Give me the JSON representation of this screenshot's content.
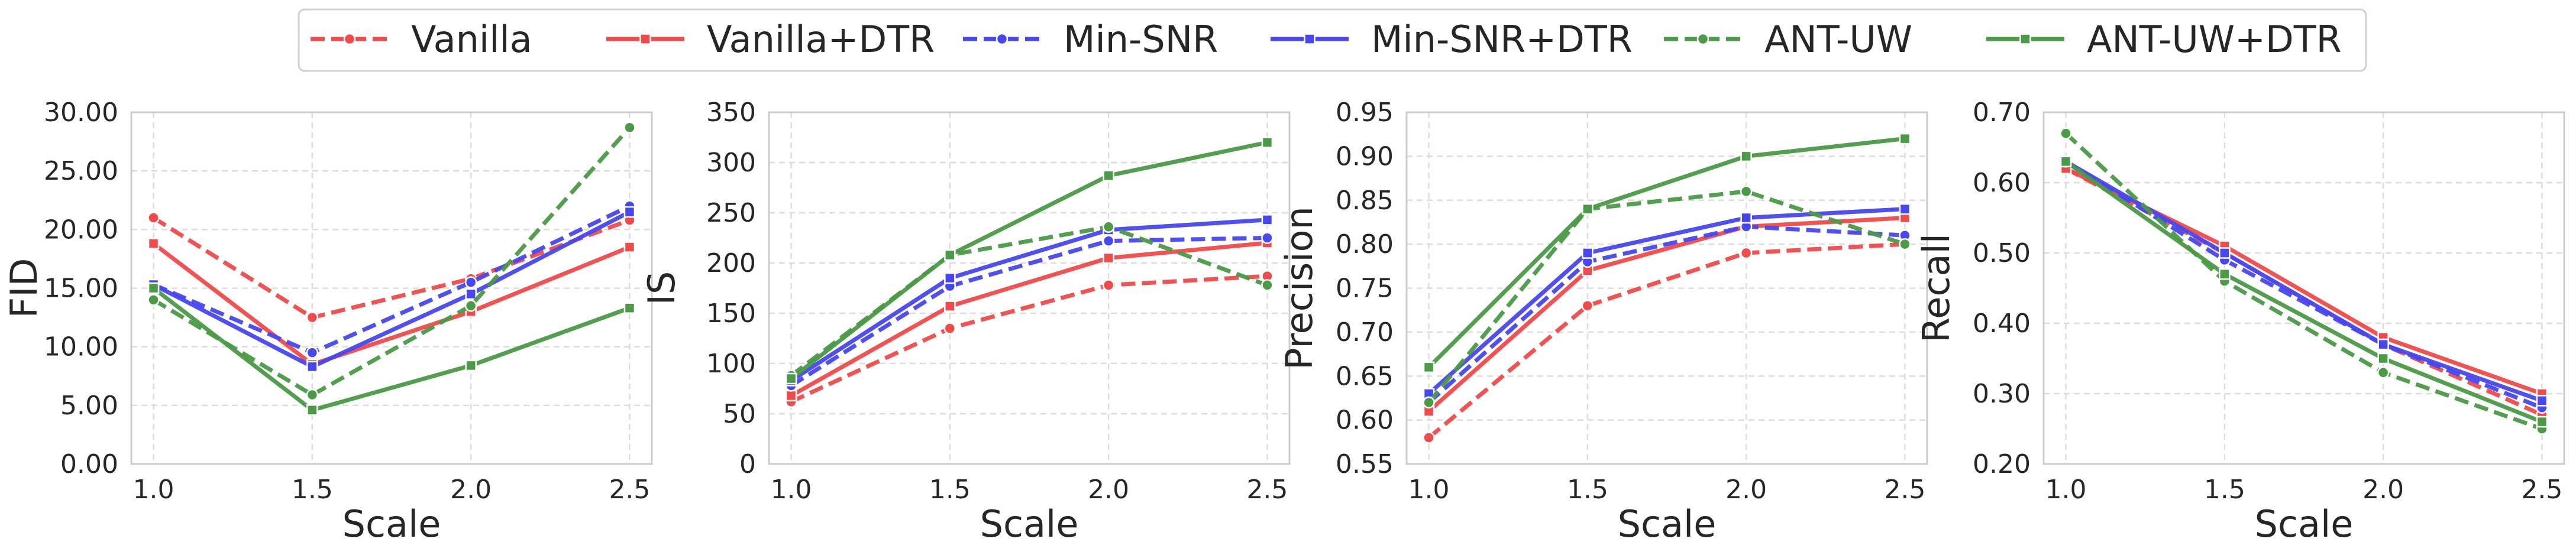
{
  "legend": {
    "position": "top-center",
    "entries": [
      "Vanilla",
      "Vanilla+DTR",
      "Min-SNR",
      "Min-SNR+DTR",
      "ANT-UW",
      "ANT-UW+DTR"
    ]
  },
  "series_style": {
    "Vanilla": {
      "color": "#f04a4a",
      "dashed": true,
      "marker": "circle"
    },
    "Vanilla+DTR": {
      "color": "#f04a4a",
      "dashed": false,
      "marker": "square"
    },
    "Min-SNR": {
      "color": "#4747f0",
      "dashed": true,
      "marker": "circle"
    },
    "Min-SNR+DTR": {
      "color": "#4747f0",
      "dashed": false,
      "marker": "square"
    },
    "ANT-UW": {
      "color": "#4a9a46",
      "dashed": true,
      "marker": "circle"
    },
    "ANT-UW+DTR": {
      "color": "#4a9a46",
      "dashed": false,
      "marker": "square"
    }
  },
  "chart_data": [
    {
      "type": "line",
      "title": "",
      "xlabel": "Scale",
      "ylabel": "FID",
      "x": [
        1.0,
        1.5,
        2.0,
        2.5
      ],
      "x_ticks": [
        "1.0",
        "1.5",
        "2.0",
        "2.5"
      ],
      "xlim": [
        0.93,
        2.57
      ],
      "ylim": [
        0,
        30
      ],
      "y_ticks": [
        0,
        5,
        10,
        15,
        20,
        25,
        30
      ],
      "y_tick_labels": [
        "0.00",
        "5.00",
        "10.00",
        "15.00",
        "20.00",
        "25.00",
        "30.00"
      ],
      "grid": true,
      "series": [
        {
          "name": "Vanilla",
          "values": [
            21.0,
            12.5,
            15.8,
            20.8
          ]
        },
        {
          "name": "Vanilla+DTR",
          "values": [
            18.8,
            8.5,
            13.0,
            18.5
          ]
        },
        {
          "name": "Min-SNR",
          "values": [
            15.3,
            9.5,
            15.5,
            22.0
          ]
        },
        {
          "name": "Min-SNR+DTR",
          "values": [
            15.3,
            8.3,
            14.5,
            21.5
          ]
        },
        {
          "name": "ANT-UW",
          "values": [
            14.0,
            5.9,
            13.5,
            28.7
          ]
        },
        {
          "name": "ANT-UW+DTR",
          "values": [
            15.0,
            4.6,
            8.4,
            13.3
          ]
        }
      ]
    },
    {
      "type": "line",
      "title": "",
      "xlabel": "Scale",
      "ylabel": "IS",
      "x": [
        1.0,
        1.5,
        2.0,
        2.5
      ],
      "x_ticks": [
        "1.0",
        "1.5",
        "2.0",
        "2.5"
      ],
      "xlim": [
        0.93,
        2.57
      ],
      "ylim": [
        0,
        350
      ],
      "y_ticks": [
        0,
        50,
        100,
        150,
        200,
        250,
        300,
        350
      ],
      "y_tick_labels": [
        "0",
        "50",
        "100",
        "150",
        "200",
        "250",
        "300",
        "350"
      ],
      "grid": true,
      "series": [
        {
          "name": "Vanilla",
          "values": [
            62,
            135,
            178,
            187
          ]
        },
        {
          "name": "Vanilla+DTR",
          "values": [
            68,
            157,
            205,
            220
          ]
        },
        {
          "name": "Min-SNR",
          "values": [
            78,
            177,
            222,
            225
          ]
        },
        {
          "name": "Min-SNR+DTR",
          "values": [
            83,
            185,
            233,
            243
          ]
        },
        {
          "name": "ANT-UW",
          "values": [
            88,
            208,
            236,
            178
          ]
        },
        {
          "name": "ANT-UW+DTR",
          "values": [
            85,
            208,
            287,
            320
          ]
        }
      ]
    },
    {
      "type": "line",
      "title": "",
      "xlabel": "Scale",
      "ylabel": "Precision",
      "x": [
        1.0,
        1.5,
        2.0,
        2.5
      ],
      "x_ticks": [
        "1.0",
        "1.5",
        "2.0",
        "2.5"
      ],
      "xlim": [
        0.93,
        2.57
      ],
      "ylim": [
        0.55,
        0.95
      ],
      "y_ticks": [
        0.55,
        0.6,
        0.65,
        0.7,
        0.75,
        0.8,
        0.85,
        0.9,
        0.95
      ],
      "y_tick_labels": [
        "0.55",
        "0.60",
        "0.65",
        "0.70",
        "0.75",
        "0.80",
        "0.85",
        "0.90",
        "0.95"
      ],
      "grid": true,
      "series": [
        {
          "name": "Vanilla",
          "values": [
            0.58,
            0.73,
            0.79,
            0.8
          ]
        },
        {
          "name": "Vanilla+DTR",
          "values": [
            0.61,
            0.77,
            0.82,
            0.83
          ]
        },
        {
          "name": "Min-SNR",
          "values": [
            0.62,
            0.78,
            0.82,
            0.81
          ]
        },
        {
          "name": "Min-SNR+DTR",
          "values": [
            0.63,
            0.79,
            0.83,
            0.84
          ]
        },
        {
          "name": "ANT-UW",
          "values": [
            0.62,
            0.84,
            0.86,
            0.8
          ]
        },
        {
          "name": "ANT-UW+DTR",
          "values": [
            0.66,
            0.84,
            0.9,
            0.92
          ]
        }
      ]
    },
    {
      "type": "line",
      "title": "",
      "xlabel": "Scale",
      "ylabel": "Recall",
      "x": [
        1.0,
        1.5,
        2.0,
        2.5
      ],
      "x_ticks": [
        "1.0",
        "1.5",
        "2.0",
        "2.5"
      ],
      "xlim": [
        0.93,
        2.57
      ],
      "ylim": [
        0.2,
        0.7
      ],
      "y_ticks": [
        0.2,
        0.3,
        0.4,
        0.5,
        0.6,
        0.7
      ],
      "y_tick_labels": [
        "0.20",
        "0.30",
        "0.40",
        "0.50",
        "0.60",
        "0.70"
      ],
      "grid": true,
      "series": [
        {
          "name": "Vanilla",
          "values": [
            0.62,
            0.5,
            0.37,
            0.27
          ]
        },
        {
          "name": "Vanilla+DTR",
          "values": [
            0.62,
            0.51,
            0.38,
            0.3
          ]
        },
        {
          "name": "Min-SNR",
          "values": [
            0.63,
            0.49,
            0.37,
            0.28
          ]
        },
        {
          "name": "Min-SNR+DTR",
          "values": [
            0.63,
            0.5,
            0.37,
            0.29
          ]
        },
        {
          "name": "ANT-UW",
          "values": [
            0.67,
            0.46,
            0.33,
            0.25
          ]
        },
        {
          "name": "ANT-UW+DTR",
          "values": [
            0.63,
            0.47,
            0.35,
            0.26
          ]
        }
      ]
    }
  ]
}
